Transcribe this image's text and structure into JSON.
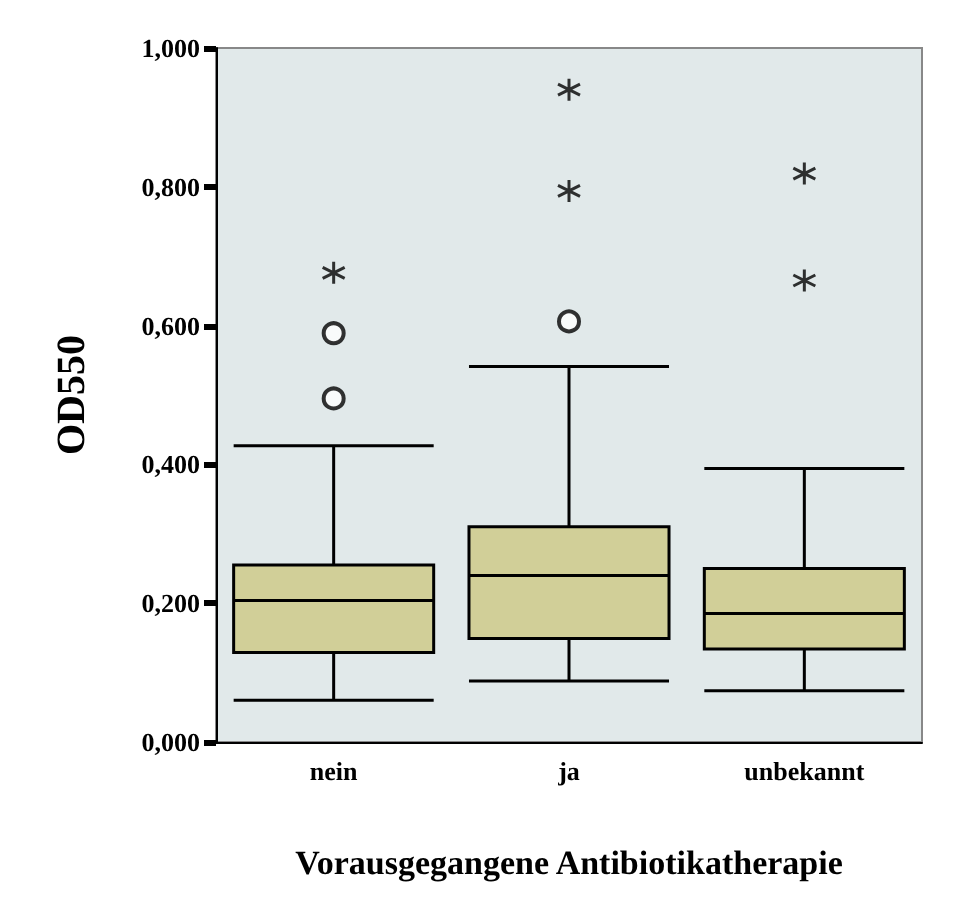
{
  "chart_data": {
    "type": "box",
    "xlabel": "Vorausgegangene Antibiotikatherapie",
    "ylabel": "OD550",
    "categories": [
      "nein",
      "ja",
      "unbekannt"
    ],
    "ylim": [
      0,
      1
    ],
    "yticks": [
      {
        "value": 0,
        "label": "0,000"
      },
      {
        "value": 0.2,
        "label": "0,200"
      },
      {
        "value": 0.4,
        "label": "0,400"
      },
      {
        "value": 0.6,
        "label": "0,600"
      },
      {
        "value": 0.8,
        "label": "0,800"
      },
      {
        "value": 1,
        "label": "1,000"
      }
    ],
    "grid": false,
    "series": [
      {
        "color": "#d1cf98",
        "boxes": [
          {
            "low": 0.06,
            "q1": 0.129,
            "median": 0.204,
            "q3": 0.255,
            "high": 0.427,
            "outliers": [
              0.495,
              0.589
            ]
          },
          {
            "low": 0.088,
            "q1": 0.149,
            "median": 0.24,
            "q3": 0.31,
            "high": 0.541,
            "outliers": [
              0.606
            ]
          },
          {
            "low": 0.074,
            "q1": 0.134,
            "median": 0.185,
            "q3": 0.25,
            "high": 0.394
          }
        ]
      },
      {
        "type": "scatter",
        "marker": "cross",
        "color": "#000000",
        "x": [
          "nein",
          "ja",
          "ja",
          "unbekannt",
          "unbekannt"
        ],
        "values": [
          0.676,
          0.794,
          0.94,
          0.665,
          0.819
        ]
      }
    ]
  }
}
